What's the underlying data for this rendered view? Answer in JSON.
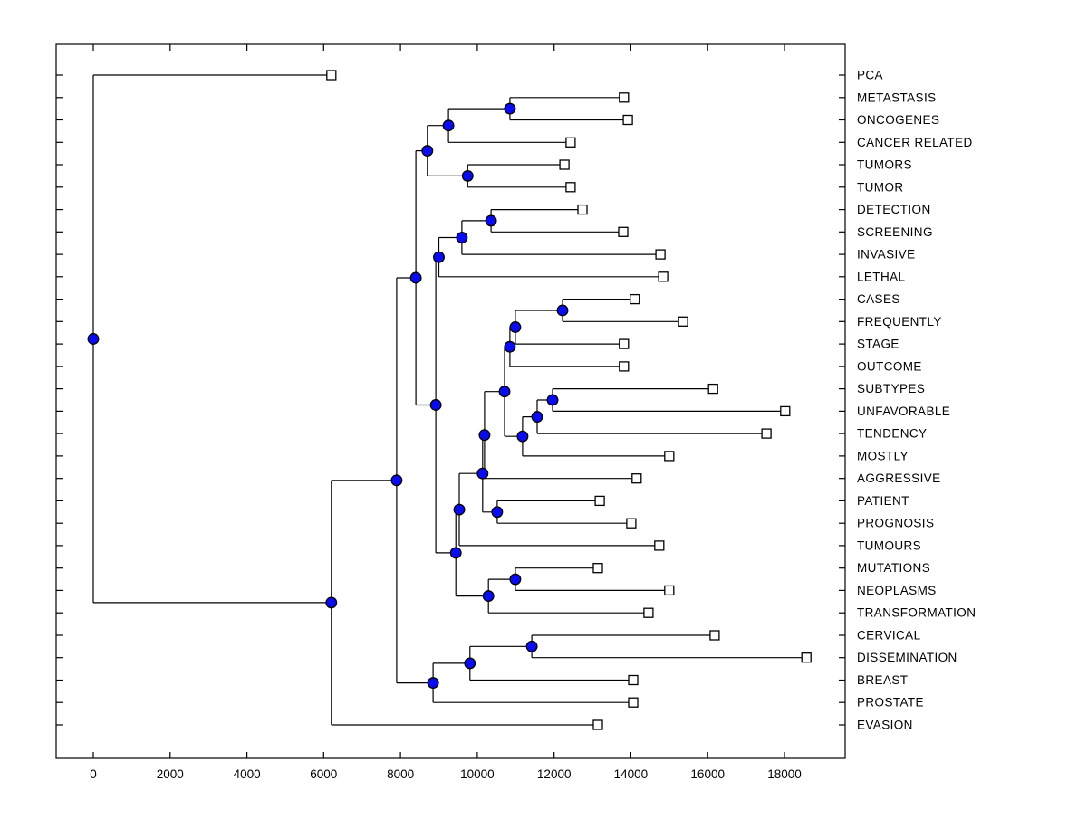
{
  "figure": {
    "background": "#ffffff",
    "frame_color": "#000000"
  },
  "chart_data": {
    "type": "dendrogram",
    "orientation": "left-to-right",
    "title": "",
    "xlabel": "",
    "ylabel": "",
    "grid": false,
    "legend": null,
    "x_axis": {
      "min": 0,
      "max": 18000,
      "ticks": [
        0,
        2000,
        4000,
        6000,
        8000,
        10000,
        12000,
        14000,
        16000,
        18000
      ]
    },
    "styles": {
      "branch_color": "#000000",
      "node_marker": "filled-circle",
      "node_fill": "#0b0bf0",
      "node_edge": "#000000",
      "leaf_marker": "open-square",
      "leaf_fill": "#ffffff",
      "leaf_edge": "#000000"
    },
    "leaves": [
      {
        "id": "L1",
        "label": "PCA",
        "distance": 6200
      },
      {
        "id": "L2",
        "label": "METASTASIS",
        "distance": 13820
      },
      {
        "id": "L3",
        "label": "ONCOGENES",
        "distance": 13920
      },
      {
        "id": "L4",
        "label": "CANCER RELATED",
        "distance": 12430
      },
      {
        "id": "L5",
        "label": "TUMORS",
        "distance": 12270
      },
      {
        "id": "L6",
        "label": "TUMOR",
        "distance": 12430
      },
      {
        "id": "L7",
        "label": "DETECTION",
        "distance": 12740
      },
      {
        "id": "L8",
        "label": "SCREENING",
        "distance": 13800
      },
      {
        "id": "L9",
        "label": "INVASIVE",
        "distance": 14770
      },
      {
        "id": "L10",
        "label": "LETHAL",
        "distance": 14840
      },
      {
        "id": "L11",
        "label": "CASES",
        "distance": 14100
      },
      {
        "id": "L12",
        "label": "FREQUENTLY",
        "distance": 15360
      },
      {
        "id": "L13",
        "label": "STAGE",
        "distance": 13820
      },
      {
        "id": "L14",
        "label": "OUTCOME",
        "distance": 13820
      },
      {
        "id": "L15",
        "label": "SUBTYPES",
        "distance": 16140
      },
      {
        "id": "L16",
        "label": "UNFAVORABLE",
        "distance": 18020
      },
      {
        "id": "L17",
        "label": "TENDENCY",
        "distance": 17530
      },
      {
        "id": "L18",
        "label": "MOSTLY",
        "distance": 15000
      },
      {
        "id": "L19",
        "label": "AGGRESSIVE",
        "distance": 14150
      },
      {
        "id": "L20",
        "label": "PATIENT",
        "distance": 13190
      },
      {
        "id": "L21",
        "label": "PROGNOSIS",
        "distance": 14010
      },
      {
        "id": "L22",
        "label": "TUMOURS",
        "distance": 14740
      },
      {
        "id": "L23",
        "label": "MUTATIONS",
        "distance": 13140
      },
      {
        "id": "L24",
        "label": "NEOPLASMS",
        "distance": 15000
      },
      {
        "id": "L25",
        "label": "TRANSFORMATION",
        "distance": 14460
      },
      {
        "id": "L26",
        "label": "CERVICAL",
        "distance": 16180
      },
      {
        "id": "L27",
        "label": "DISSEMINATION",
        "distance": 18570
      },
      {
        "id": "L28",
        "label": "BREAST",
        "distance": 14060
      },
      {
        "id": "L29",
        "label": "PROSTATE",
        "distance": 14060
      },
      {
        "id": "L30",
        "label": "EVASION",
        "distance": 13140
      }
    ],
    "nodes": [
      {
        "id": "nA",
        "children": [
          "L2",
          "L3"
        ],
        "distance": 10850
      },
      {
        "id": "nB",
        "children": [
          "nA",
          "L4"
        ],
        "distance": 9250
      },
      {
        "id": "nD",
        "children": [
          "L5",
          "L6"
        ],
        "distance": 9750
      },
      {
        "id": "nC",
        "children": [
          "nB",
          "nD"
        ],
        "distance": 8700
      },
      {
        "id": "nE",
        "children": [
          "L7",
          "L8"
        ],
        "distance": 10360
      },
      {
        "id": "nF",
        "children": [
          "nE",
          "L9"
        ],
        "distance": 9600
      },
      {
        "id": "nG",
        "children": [
          "nF",
          "L10"
        ],
        "distance": 9000
      },
      {
        "id": "nI",
        "children": [
          "L11",
          "L12"
        ],
        "distance": 12220
      },
      {
        "id": "nJ",
        "children": [
          "nI",
          "L13"
        ],
        "distance": 10990
      },
      {
        "id": "nK",
        "children": [
          "nJ",
          "L14"
        ],
        "distance": 10850
      },
      {
        "id": "nM",
        "children": [
          "L15",
          "L16"
        ],
        "distance": 11960
      },
      {
        "id": "nN",
        "children": [
          "nM",
          "L17"
        ],
        "distance": 11560
      },
      {
        "id": "nO",
        "children": [
          "nN",
          "L18"
        ],
        "distance": 11180
      },
      {
        "id": "nP",
        "children": [
          "nK",
          "nO"
        ],
        "distance": 10710
      },
      {
        "id": "nQ",
        "children": [
          "nP",
          "L19"
        ],
        "distance": 10190
      },
      {
        "id": "nS",
        "children": [
          "L20",
          "L21"
        ],
        "distance": 10520
      },
      {
        "id": "nR",
        "children": [
          "nQ",
          "nS"
        ],
        "distance": 10140
      },
      {
        "id": "nT",
        "children": [
          "nR",
          "L22"
        ],
        "distance": 9530
      },
      {
        "id": "nU",
        "children": [
          "L23",
          "L24"
        ],
        "distance": 10990
      },
      {
        "id": "nV",
        "children": [
          "nU",
          "L25"
        ],
        "distance": 10290
      },
      {
        "id": "n4",
        "children": [
          "nT",
          "nV"
        ],
        "distance": 9440
      },
      {
        "id": "nX",
        "children": [
          "nG",
          "n4"
        ],
        "distance": 8920
      },
      {
        "id": "nH",
        "children": [
          "nC",
          "nX"
        ],
        "distance": 8400
      },
      {
        "id": "c1",
        "children": [
          "L26",
          "L27"
        ],
        "distance": 11420
      },
      {
        "id": "c2",
        "children": [
          "c1",
          "L28"
        ],
        "distance": 9810
      },
      {
        "id": "nZ",
        "children": [
          "c2",
          "L29"
        ],
        "distance": 8850
      },
      {
        "id": "p1",
        "children": [
          "nH",
          "nZ"
        ],
        "distance": 7900
      },
      {
        "id": "nW",
        "children": [
          "p1",
          "L30"
        ],
        "distance": 6200
      },
      {
        "id": "root",
        "children": [
          "L1",
          "nW"
        ],
        "distance": 0
      }
    ],
    "root_id": "root"
  }
}
